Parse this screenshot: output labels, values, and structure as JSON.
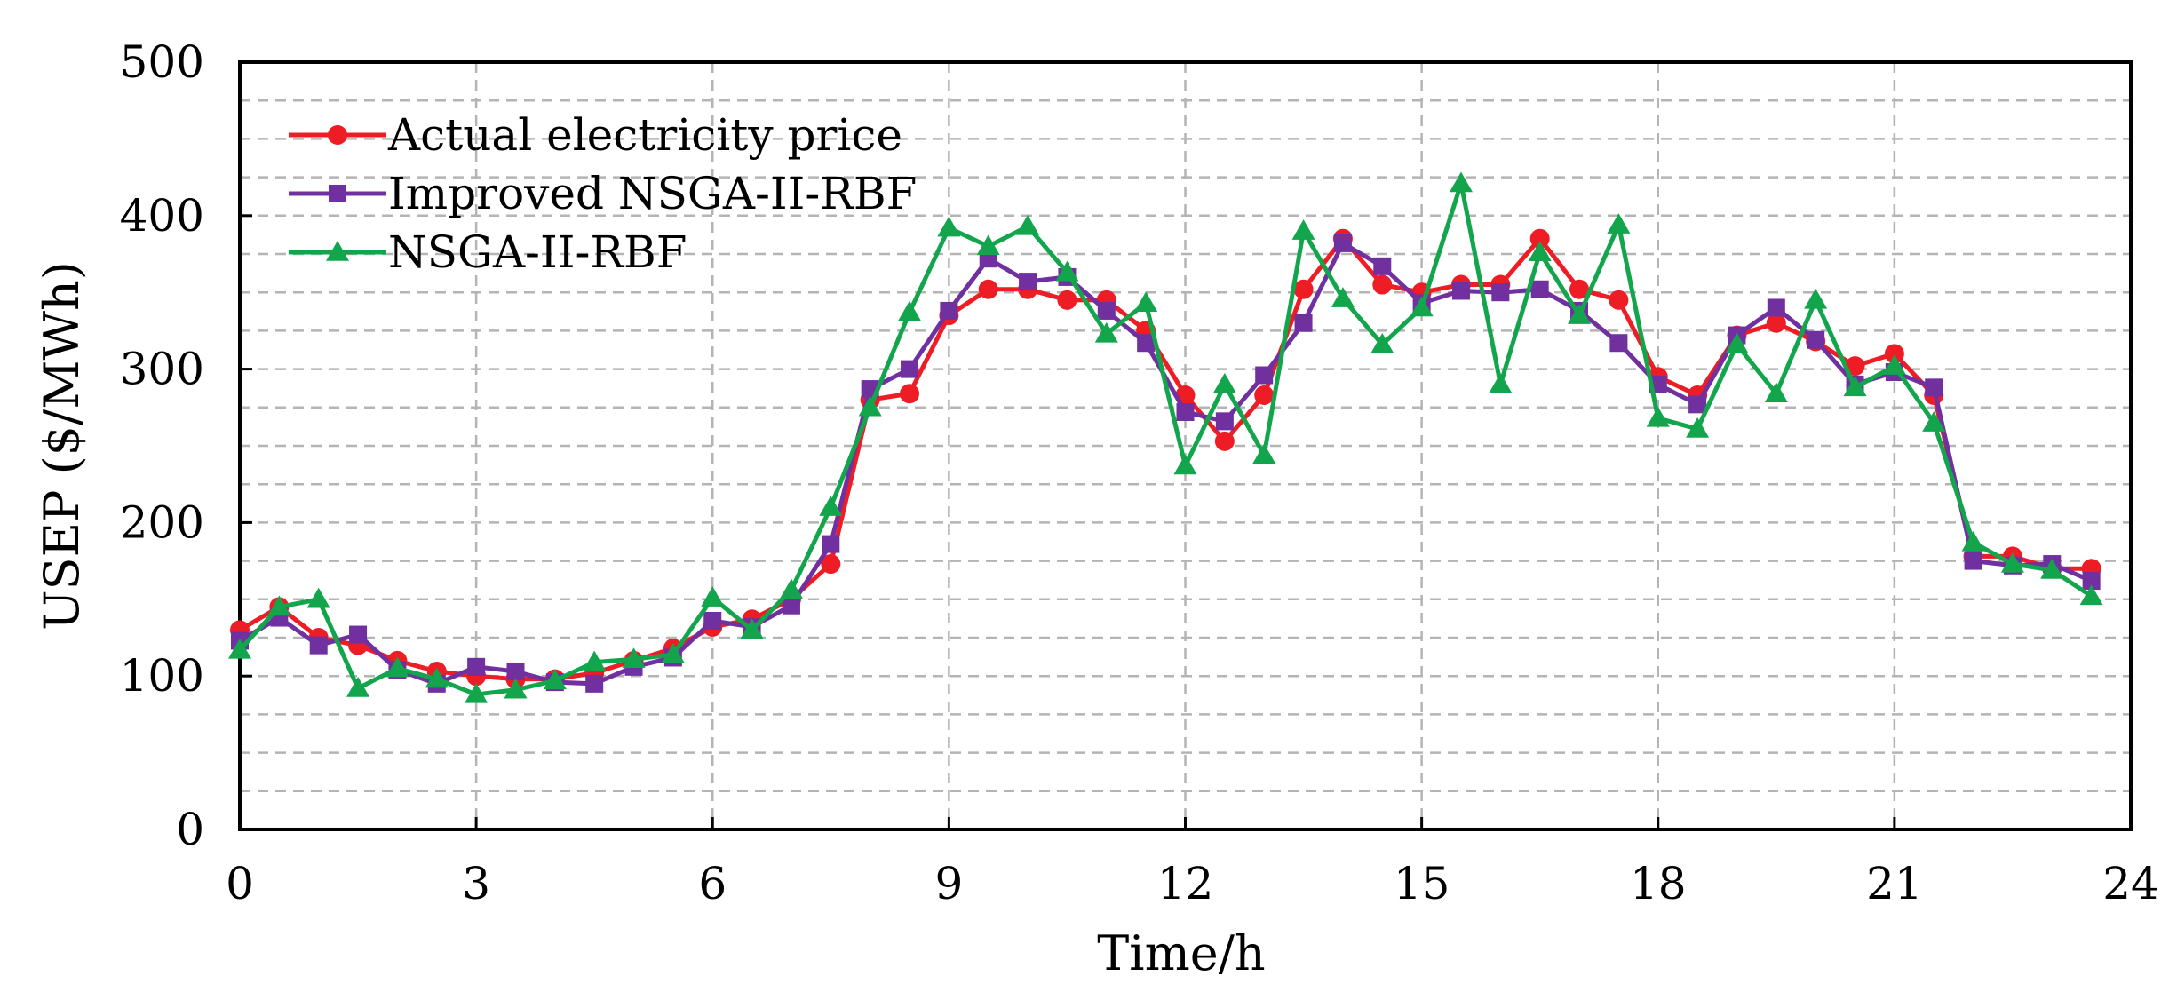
{
  "chart_data": {
    "type": "line",
    "title": "",
    "xlabel": "Time/h",
    "ylabel": "USEP ($/MWh)",
    "xlim": [
      0,
      24
    ],
    "ylim": [
      0,
      500
    ],
    "xticks": [
      0,
      3,
      6,
      9,
      12,
      15,
      18,
      21,
      24
    ],
    "yticks": [
      0,
      100,
      200,
      300,
      400,
      500
    ],
    "grid": true,
    "legend_position": "top-left",
    "x": [
      0,
      0.5,
      1,
      1.5,
      2,
      2.5,
      3,
      3.5,
      4,
      4.5,
      5,
      5.5,
      6,
      6.5,
      7,
      7.5,
      8,
      8.5,
      9,
      9.5,
      10,
      10.5,
      11,
      11.5,
      12,
      12.5,
      13,
      13.5,
      14,
      14.5,
      15,
      15.5,
      16,
      16.5,
      17,
      17.5,
      18,
      18.5,
      19,
      19.5,
      20,
      20.5,
      21,
      21.5,
      22,
      22.5,
      23,
      23.5
    ],
    "series": [
      {
        "name": "Actual electricity price",
        "color": "#ee1c24",
        "marker": "circle",
        "values": [
          130,
          145,
          125,
          120,
          110,
          103,
          100,
          98,
          98,
          102,
          110,
          118,
          132,
          137,
          150,
          173,
          280,
          284,
          335,
          352,
          352,
          345,
          345,
          325,
          283,
          253,
          283,
          352,
          385,
          355,
          350,
          355,
          355,
          385,
          352,
          345,
          295,
          283,
          322,
          330,
          318,
          302,
          310,
          283,
          178,
          178,
          170,
          170
        ]
      },
      {
        "name": " Improved NSGA-II-RBF",
        "color": "#7030a0",
        "marker": "square",
        "values": [
          123,
          138,
          120,
          127,
          104,
          95,
          106,
          103,
          96,
          95,
          106,
          112,
          136,
          132,
          146,
          186,
          287,
          300,
          338,
          372,
          357,
          360,
          338,
          317,
          272,
          266,
          296,
          330,
          382,
          367,
          343,
          351,
          350,
          352,
          338,
          317,
          290,
          277,
          322,
          340,
          319,
          290,
          298,
          288,
          175,
          172,
          173,
          162
        ]
      },
      {
        "name": "NSGA-II-RBF",
        "color": "#12a54c",
        "marker": "triangle",
        "values": [
          117,
          145,
          150,
          92,
          105,
          98,
          88,
          91,
          97,
          109,
          111,
          114,
          151,
          130,
          156,
          210,
          275,
          337,
          392,
          380,
          393,
          363,
          323,
          343,
          237,
          290,
          244,
          390,
          346,
          316,
          340,
          421,
          290,
          376,
          335,
          394,
          268,
          261,
          316,
          284,
          345,
          288,
          302,
          265,
          187,
          173,
          169,
          152
        ]
      }
    ]
  }
}
